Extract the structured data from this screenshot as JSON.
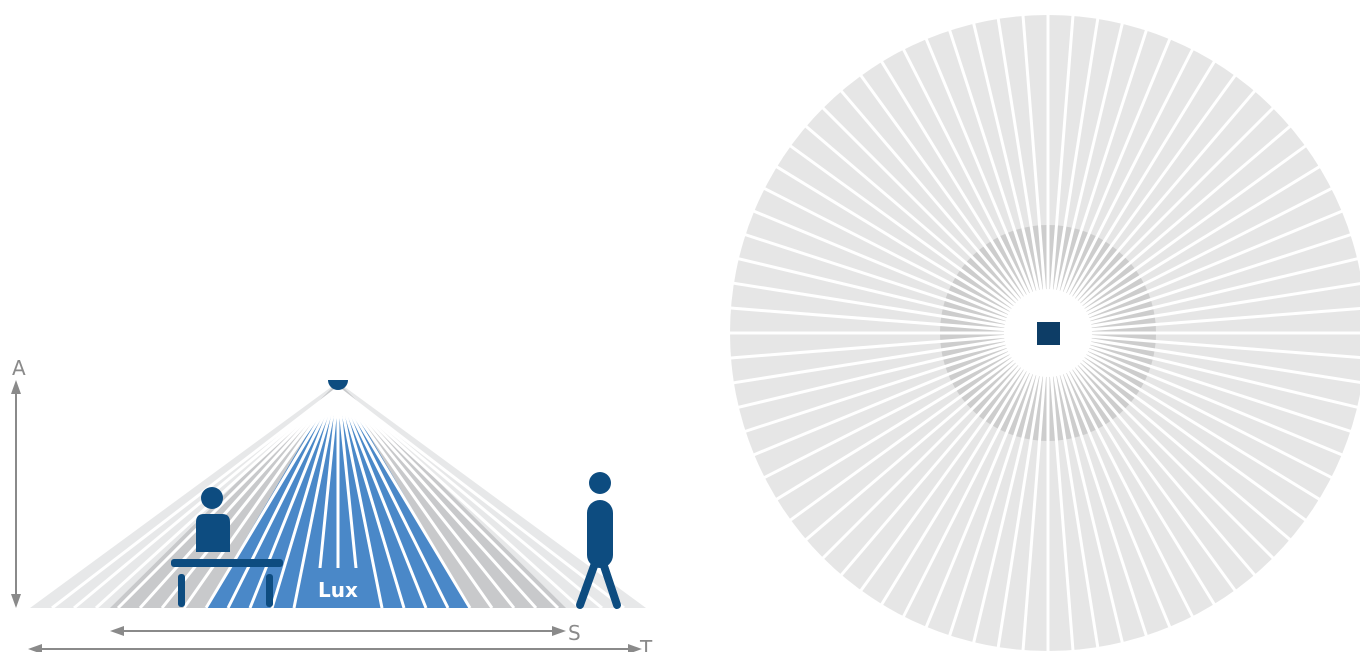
{
  "labels": {
    "height_marker": "A",
    "small_range_marker": "S",
    "total_range_marker": "T",
    "lux_zone": "Lux"
  },
  "colors": {
    "background": "#ffffff",
    "outer_zone": "#e7e8e9",
    "mid_zone": "#c8c9cb",
    "lux_zone": "#4a88c8",
    "figure": "#0d4c80",
    "dimension_line": "#8a8a8a",
    "top_view_outer": "#e6e6e6",
    "top_view_inner": "#cdcdcd",
    "sensor": "#0d3d66"
  },
  "side_view": {
    "wedge_count": 28
  },
  "top_view": {
    "ray_count": 80
  }
}
